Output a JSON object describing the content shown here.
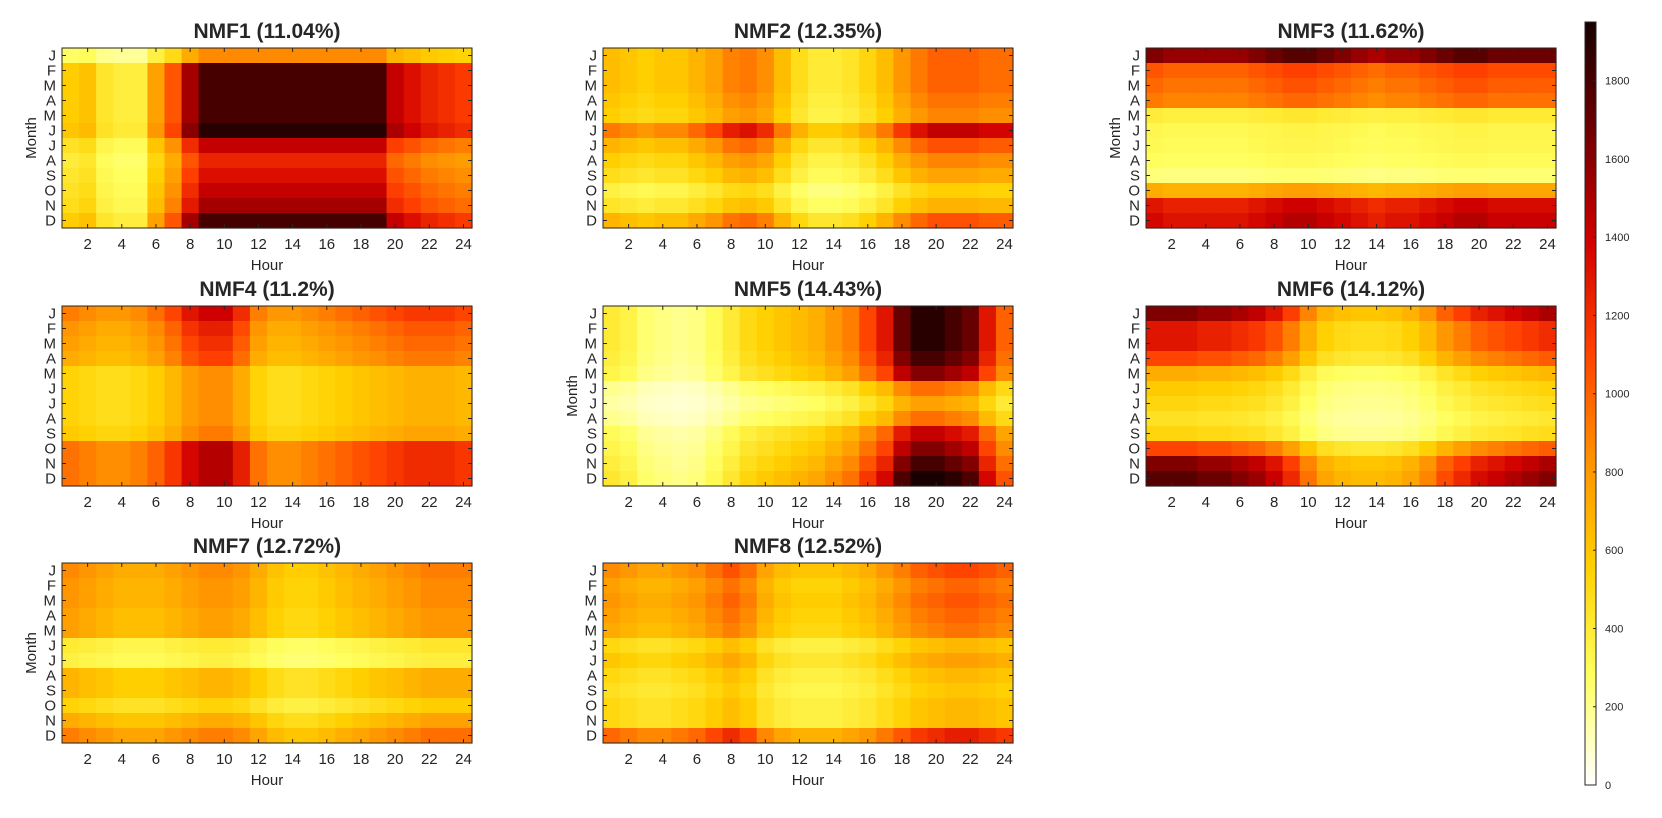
{
  "chart_data": {
    "type": "heatmap",
    "xlabel": "Hour",
    "ylabel": "Month",
    "months": [
      "J",
      "F",
      "M",
      "A",
      "M",
      "J",
      "J",
      "A",
      "S",
      "O",
      "N",
      "D"
    ],
    "x_ticks": [
      2,
      4,
      6,
      8,
      10,
      12,
      14,
      16,
      18,
      20,
      22,
      24
    ],
    "colorbar": {
      "range": [
        0,
        1950
      ],
      "ticks": [
        0,
        200,
        400,
        600,
        800,
        1000,
        1200,
        1400,
        1600,
        1800
      ],
      "colormap": "hot-reversed",
      "colors": [
        "#ffffff",
        "#ffff60",
        "#ffd000",
        "#ff9000",
        "#ff4000",
        "#d00000",
        "#700000",
        "#180000"
      ]
    },
    "panels": [
      {
        "title": "NMF1 (11.04%)",
        "show_ylabel": true,
        "show_xlabel": true,
        "hours": [
          600,
          650,
          450,
          400,
          400,
          800,
          1100,
          1600,
          1900,
          1900,
          1900,
          1900,
          1900,
          1900,
          1900,
          1900,
          1900,
          1900,
          1900,
          1500,
          1400,
          1300,
          1250,
          1200
        ],
        "months": [
          0.45,
          0.95,
          0.95,
          0.95,
          0.95,
          1.0,
          0.75,
          0.65,
          0.7,
          0.75,
          0.8,
          0.95
        ]
      },
      {
        "title": "NMF2 (12.35%)",
        "show_ylabel": false,
        "show_xlabel": true,
        "hours": [
          800,
          750,
          700,
          750,
          750,
          850,
          950,
          1100,
          1150,
          1050,
          800,
          600,
          500,
          500,
          550,
          650,
          800,
          1000,
          1150,
          1250,
          1250,
          1250,
          1200,
          1200
        ],
        "months": [
          0.8,
          0.8,
          0.8,
          0.75,
          0.7,
          1.15,
          0.85,
          0.7,
          0.6,
          0.45,
          0.55,
          0.85
        ]
      },
      {
        "title": "NMF3 (11.62%)",
        "show_ylabel": true,
        "show_xlabel": true,
        "hours": [
          1300,
          1250,
          1250,
          1250,
          1250,
          1250,
          1300,
          1350,
          1400,
          1400,
          1350,
          1300,
          1250,
          1200,
          1250,
          1250,
          1300,
          1350,
          1400,
          1400,
          1350,
          1350,
          1350,
          1350
        ],
        "months": [
          1.25,
          0.8,
          0.75,
          0.7,
          0.3,
          0.25,
          0.24,
          0.22,
          0.18,
          0.55,
          1.0,
          1.05
        ]
      },
      {
        "title": "NMF4 (11.2%)",
        "show_ylabel": false,
        "show_xlabel": true,
        "hours": [
          900,
          850,
          800,
          800,
          850,
          950,
          1100,
          1300,
          1400,
          1400,
          1200,
          900,
          800,
          800,
          850,
          900,
          950,
          1000,
          1050,
          1100,
          1150,
          1150,
          1150,
          1100
        ],
        "months": [
          1.0,
          0.9,
          0.85,
          0.8,
          0.6,
          0.6,
          0.6,
          0.6,
          0.65,
          1.05,
          1.05,
          1.05
        ]
      },
      {
        "title": "NMF5 (14.43%)",
        "show_ylabel": true,
        "show_xlabel": true,
        "hours": [
          400,
          350,
          250,
          220,
          200,
          220,
          300,
          400,
          500,
          550,
          600,
          650,
          700,
          800,
          900,
          1100,
          1300,
          1700,
          1900,
          1900,
          1800,
          1700,
          1300,
          1000
        ],
        "months": [
          1.0,
          1.0,
          1.0,
          0.95,
          0.85,
          0.5,
          0.4,
          0.5,
          0.75,
          0.85,
          0.95,
          1.05
        ]
      },
      {
        "title": "NMF6 (14.12%)",
        "show_ylabel": false,
        "show_xlabel": true,
        "hours": [
          1300,
          1300,
          1300,
          1250,
          1250,
          1200,
          1150,
          1050,
          900,
          700,
          550,
          500,
          480,
          480,
          500,
          550,
          650,
          800,
          900,
          1000,
          1050,
          1100,
          1150,
          1200
        ],
        "months": [
          1.25,
          1.0,
          1.0,
          0.85,
          0.55,
          0.45,
          0.4,
          0.35,
          0.4,
          0.85,
          1.25,
          1.35
        ]
      },
      {
        "title": "NMF7 (12.72%)",
        "show_ylabel": true,
        "show_xlabel": true,
        "hours": [
          900,
          850,
          800,
          750,
          750,
          750,
          800,
          850,
          900,
          900,
          850,
          750,
          650,
          600,
          600,
          650,
          700,
          750,
          800,
          850,
          900,
          950,
          950,
          950
        ],
        "months": [
          0.95,
          0.9,
          0.9,
          0.85,
          0.85,
          0.45,
          0.4,
          0.75,
          0.75,
          0.6,
          0.8,
          1.0
        ]
      },
      {
        "title": "NMF8 (12.52%)",
        "show_ylabel": false,
        "show_xlabel": true,
        "hours": [
          850,
          800,
          750,
          750,
          800,
          850,
          950,
          1050,
          950,
          750,
          650,
          600,
          600,
          600,
          650,
          700,
          800,
          900,
          1000,
          1050,
          1100,
          1100,
          1050,
          1000
        ],
        "months": [
          1.0,
          0.9,
          0.95,
          0.9,
          0.85,
          0.6,
          0.7,
          0.6,
          0.55,
          0.6,
          0.6,
          1.15
        ]
      }
    ]
  }
}
